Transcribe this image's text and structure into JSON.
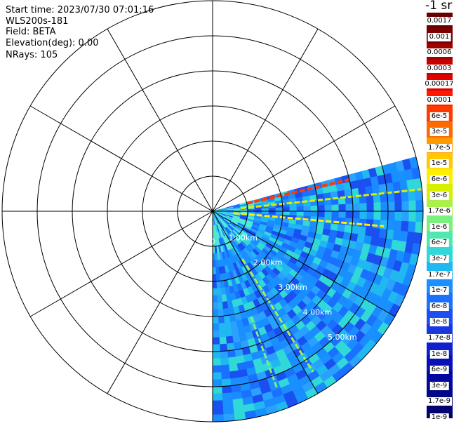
{
  "info": {
    "start_time": "Start time: 2023/07/30 07:01:16",
    "instrument": "WLS200s-181",
    "field": "Field: BETA",
    "elevation": "Elevation(deg): 0.00",
    "nrays": "NRays: 105"
  },
  "range_labels": [
    "0",
    "1.00km",
    "2.00km",
    "3.00km",
    "4.00km",
    "5.00km"
  ],
  "colorbar": {
    "title": "-1 sr",
    "labels": [
      "0.0017",
      "0.001",
      "0.0006",
      "0.0003",
      "0.00017",
      "0.0001",
      "6e-5",
      "3e-5",
      "1.7e-5",
      "1e-5",
      "6e-6",
      "3e-6",
      "1.7e-6",
      "1e-6",
      "6e-7",
      "3e-7",
      "1.7e-7",
      "1e-7",
      "6e-8",
      "3e-8",
      "1.7e-8",
      "1e-8",
      "6e-9",
      "3e-9",
      "1.7e-9",
      "1e-9"
    ],
    "colors": [
      "#6b0000",
      "#7a0000",
      "#a00000",
      "#c80000",
      "#e00000",
      "#ff1a00",
      "#ff3a00",
      "#ff6a00",
      "#ff9a00",
      "#ffc800",
      "#ffee00",
      "#d8f000",
      "#a8f04a",
      "#7cf07c",
      "#50e8b0",
      "#30d8d8",
      "#20b8f0",
      "#1890ff",
      "#1a70ff",
      "#1a50f0",
      "#1a38e0",
      "#1020d0",
      "#0810b8",
      "#0008a0",
      "#000888",
      "#000070"
    ]
  },
  "scan": {
    "start_azimuth_deg": 75,
    "end_azimuth_deg": 180,
    "ranges_km": 6
  }
}
